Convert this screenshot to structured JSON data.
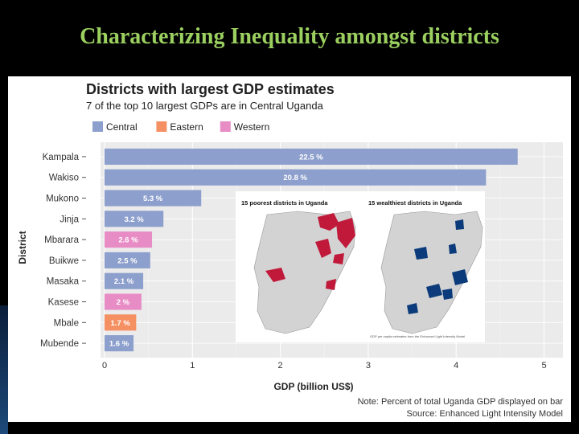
{
  "slide": {
    "title": "Characterizing Inequality amongst districts"
  },
  "chart_data": {
    "type": "bar",
    "orientation": "horizontal",
    "title": "Districts with largest GDP estimates",
    "subtitle": "7 of the top 10 largest GDPs are in Central Uganda",
    "xlabel": "GDP (billion US$)",
    "ylabel": "District",
    "xlim": [
      0,
      5
    ],
    "xticks": [
      "0",
      "1",
      "2",
      "3",
      "4",
      "5"
    ],
    "legend": [
      {
        "name": "Central",
        "color": "#8d9fcc"
      },
      {
        "name": "Eastern",
        "color": "#f59063"
      },
      {
        "name": "Western",
        "color": "#e88cc6"
      }
    ],
    "bars": [
      {
        "district": "Kampala",
        "value": 4.7,
        "label": "22.5 %",
        "region": "Central"
      },
      {
        "district": "Wakiso",
        "value": 4.34,
        "label": "20.8 %",
        "region": "Central"
      },
      {
        "district": "Mukono",
        "value": 1.1,
        "label": "5.3 %",
        "region": "Central"
      },
      {
        "district": "Jinja",
        "value": 0.67,
        "label": "3.2 %",
        "region": "Central"
      },
      {
        "district": "Mbarara",
        "value": 0.54,
        "label": "2.6 %",
        "region": "Western"
      },
      {
        "district": "Buikwe",
        "value": 0.52,
        "label": "2.5 %",
        "region": "Central"
      },
      {
        "district": "Masaka",
        "value": 0.44,
        "label": "2.1 %",
        "region": "Central"
      },
      {
        "district": "Kasese",
        "value": 0.42,
        "label": "2 %",
        "region": "Western"
      },
      {
        "district": "Mbale",
        "value": 0.36,
        "label": "1.7 %",
        "region": "Eastern"
      },
      {
        "district": "Mubende",
        "value": 0.33,
        "label": "1.6 %",
        "region": "Central"
      }
    ],
    "note": "Note: Percent of total Uganda GDP displayed on bar",
    "source": "Source: Enhanced Light Intensity Model"
  },
  "inset": {
    "left_title": "15 poorest districts in Uganda",
    "right_title": "15 wealthiest districts in Uganda",
    "caption": "GDP per capita estimates from the Enhanced Light Intensity Model",
    "poor_color": "#c0193a",
    "rich_color": "#0b3b7a",
    "map_color": "#d3d3d3"
  }
}
